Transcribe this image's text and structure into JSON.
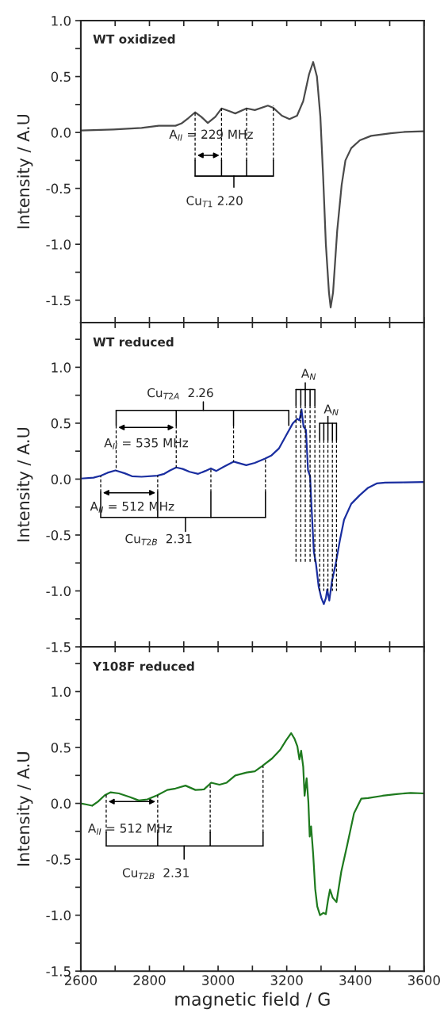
{
  "chart_data": [
    {
      "type": "line",
      "title": "WT oxidized",
      "ylabel": "Intensity / A.U",
      "x": [
        2600,
        2695,
        2777,
        2827,
        2876,
        2893,
        2914,
        2933,
        2951,
        2970,
        2992,
        3010,
        3033,
        3050,
        3083,
        3107,
        3145,
        3161,
        3186,
        3208,
        3230,
        3248,
        3265,
        3277,
        3288,
        3298,
        3306,
        3314,
        3323,
        3328,
        3335,
        3347,
        3360,
        3371,
        3388,
        3413,
        3446,
        3503,
        3545,
        3600
      ],
      "series": [
        {
          "color": "#4a4a4a",
          "values": [
            0.017,
            0.027,
            0.04,
            0.06,
            0.06,
            0.08,
            0.13,
            0.18,
            0.14,
            0.085,
            0.14,
            0.215,
            0.19,
            0.17,
            0.215,
            0.2,
            0.24,
            0.22,
            0.15,
            0.12,
            0.15,
            0.28,
            0.52,
            0.63,
            0.5,
            0.14,
            -0.39,
            -1.0,
            -1.43,
            -1.565,
            -1.43,
            -0.88,
            -0.47,
            -0.25,
            -0.14,
            -0.07,
            -0.03,
            -0.007,
            0.005,
            0.01
          ]
        }
      ],
      "xlim": [
        2600,
        3600
      ],
      "xticks": [
        2600,
        {
          "value": 2700,
          "label": null
        },
        2800,
        {
          "value": 2900,
          "label": null
        },
        3000,
        {
          "value": 3100,
          "label": null
        },
        3200,
        {
          "value": 3300,
          "label": null
        },
        3400,
        {
          "value": 3500,
          "label": null
        },
        3600
      ],
      "ylim": [
        -1.7,
        1.0
      ],
      "yticks": [
        {
          "value": 1.0,
          "label": "1.0"
        },
        {
          "value": 0.75,
          "label": null
        },
        0.5,
        {
          "value": 0.25,
          "label": null
        },
        {
          "value": 0.0,
          "label": "0.0"
        },
        {
          "value": -0.25,
          "label": null
        },
        -0.5,
        {
          "value": -0.75,
          "label": null
        },
        {
          "value": -1.0,
          "label": "-1.0"
        },
        {
          "value": -1.25,
          "label": null
        },
        -1.5
      ],
      "tick_labels": "y",
      "annotations": [
        "A$_{II}$ = 229 MHz",
        "Cu$_{T1}$ 2.20"
      ]
    },
    {
      "type": "line",
      "title": "WT reduced",
      "ylabel": "Intensity / A.U",
      "x": [
        2600,
        2637,
        2658,
        2678,
        2701,
        2728,
        2749,
        2777,
        2823,
        2843,
        2860,
        2878,
        2897,
        2917,
        2942,
        2963,
        2979,
        2995,
        3016,
        3045,
        3082,
        3107,
        3136,
        3156,
        3177,
        3198,
        3218,
        3231,
        3237,
        3243,
        3249,
        3256,
        3262,
        3268,
        3272,
        3279,
        3285,
        3293,
        3301,
        3308,
        3314,
        3318,
        3324,
        3332,
        3343,
        3355,
        3367,
        3388,
        3413,
        3437,
        3462,
        3487,
        3536,
        3600
      ],
      "series": [
        {
          "color": "#1a2ea0",
          "values": [
            0.005,
            0.013,
            0.03,
            0.057,
            0.078,
            0.052,
            0.026,
            0.021,
            0.031,
            0.047,
            0.078,
            0.104,
            0.091,
            0.065,
            0.047,
            0.073,
            0.096,
            0.073,
            0.109,
            0.156,
            0.125,
            0.145,
            0.182,
            0.213,
            0.273,
            0.39,
            0.5,
            0.54,
            0.525,
            0.623,
            0.468,
            0.44,
            0.078,
            0.026,
            -0.234,
            -0.65,
            -0.753,
            -0.96,
            -1.065,
            -1.117,
            -1.065,
            -0.987,
            -1.086,
            -0.909,
            -0.753,
            -0.545,
            -0.364,
            -0.221,
            -0.143,
            -0.078,
            -0.039,
            -0.031,
            -0.029,
            -0.026
          ]
        }
      ],
      "xlim": [
        2600,
        3600
      ],
      "xticks": [
        2600,
        {
          "value": 2700,
          "label": null
        },
        2800,
        {
          "value": 2900,
          "label": null
        },
        3000,
        {
          "value": 3100,
          "label": null
        },
        3200,
        {
          "value": 3300,
          "label": null
        },
        3400,
        {
          "value": 3500,
          "label": null
        },
        3600
      ],
      "ylim": [
        -1.5,
        1.4
      ],
      "yticks": [
        {
          "value": 1.25,
          "label": null
        },
        {
          "value": 1.0,
          "label": "1.0"
        },
        {
          "value": 0.75,
          "label": null
        },
        0.5,
        {
          "value": 0.25,
          "label": null
        },
        {
          "value": 0.0,
          "label": "0.0"
        },
        {
          "value": -0.25,
          "label": null
        },
        -0.5,
        {
          "value": -0.75,
          "label": null
        },
        {
          "value": -1.0,
          "label": "-1.0"
        },
        {
          "value": -1.25,
          "label": null
        },
        -1.5
      ],
      "tick_labels": "y",
      "annotations": [
        "Cu$_{T2A}$  2.26",
        {
          "text": "A$_{II}$ = 535 MHz",
          "x": 2701,
          "y": 0.078
        },
        "A$_{II}$ = 512 MHz",
        "Cu$_{T2B}$  2.31",
        "A$_{N}$",
        "A$_{N}$"
      ]
    },
    {
      "type": "line",
      "title": "Y108F reduced",
      "ylabel": "Intensity / A.U",
      "xlabel": "magnetic field / G",
      "x": [
        2600,
        2617,
        2633,
        2650,
        2670,
        2687,
        2711,
        2744,
        2769,
        2794,
        2823,
        2852,
        2876,
        2905,
        2934,
        2959,
        2980,
        3004,
        3025,
        3050,
        3083,
        3107,
        3128,
        3157,
        3181,
        3198,
        3213,
        3223,
        3231,
        3237,
        3242,
        3248,
        3252,
        3258,
        3263,
        3267,
        3271,
        3277,
        3283,
        3289,
        3297,
        3307,
        3314,
        3320,
        3326,
        3334,
        3345,
        3359,
        3376,
        3396,
        3417,
        3437,
        3479,
        3520,
        3561,
        3600
      ],
      "series": [
        {
          "color": "#1e7a1e",
          "values": [
            0.0,
            -0.01,
            -0.021,
            0.016,
            0.073,
            0.099,
            0.089,
            0.055,
            0.026,
            0.036,
            0.073,
            0.12,
            0.133,
            0.159,
            0.12,
            0.125,
            0.185,
            0.167,
            0.185,
            0.25,
            0.276,
            0.286,
            0.333,
            0.401,
            0.479,
            0.563,
            0.628,
            0.576,
            0.51,
            0.393,
            0.471,
            0.328,
            0.068,
            0.224,
            0.016,
            -0.297,
            -0.206,
            -0.453,
            -0.766,
            -0.922,
            -1.0,
            -0.979,
            -0.99,
            -0.87,
            -0.771,
            -0.844,
            -0.883,
            -0.609,
            -0.375,
            -0.089,
            0.042,
            0.047,
            0.068,
            0.083,
            0.094,
            0.089
          ]
        }
      ],
      "xlim": [
        2600,
        3600
      ],
      "xticks": [
        2600,
        {
          "value": 2700,
          "label": null
        },
        2800,
        {
          "value": 2900,
          "label": null
        },
        3000,
        {
          "value": 3100,
          "label": null
        },
        3200,
        {
          "value": 3300,
          "label": null
        },
        3400,
        {
          "value": 3500,
          "label": null
        },
        3600
      ],
      "ylim": [
        -1.5,
        1.4
      ],
      "yticks": [
        {
          "value": 1.25,
          "label": null
        },
        {
          "value": 1.0,
          "label": "1.0"
        },
        {
          "value": 0.75,
          "label": null
        },
        0.5,
        {
          "value": 0.25,
          "label": null
        },
        {
          "value": 0.0,
          "label": "0.0"
        },
        {
          "value": -0.25,
          "label": null
        },
        -0.5,
        {
          "value": -0.75,
          "label": null
        },
        {
          "value": -1.0,
          "label": "-1.0"
        },
        {
          "value": -1.25,
          "label": null
        },
        -1.5
      ],
      "annotations": [
        {
          "text": "A$_{II}$ = 512 MHz",
          "x": 2670,
          "y": 0.073
        },
        "Cu$_{T2B}$  2.31"
      ]
    }
  ]
}
